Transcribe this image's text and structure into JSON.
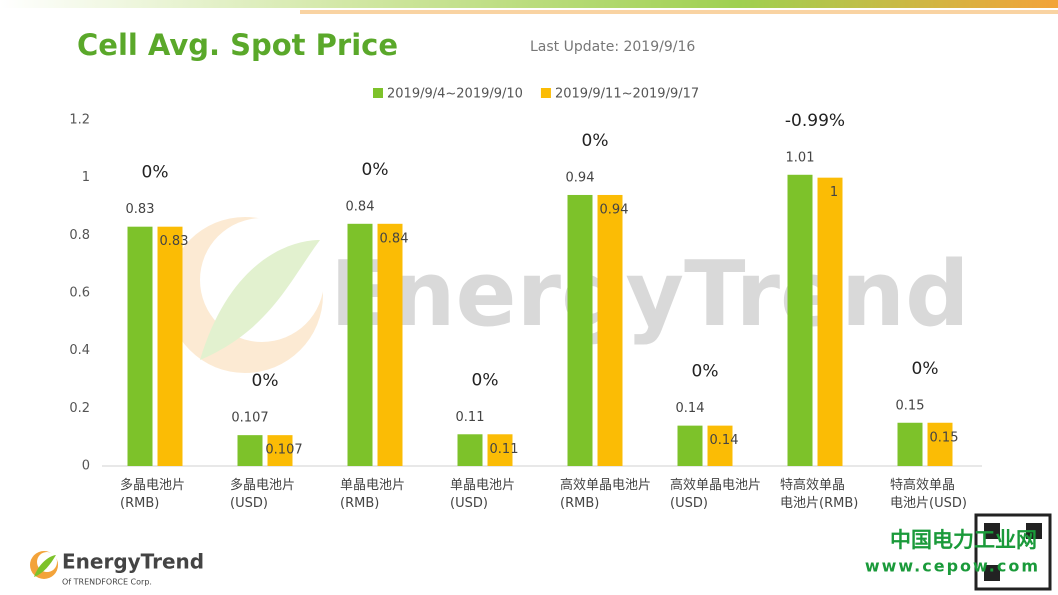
{
  "chart_data": {
    "type": "bar",
    "title": "Cell Avg. Spot Price",
    "subtitle": "Last Update: 2019/9/16",
    "categories": [
      "多晶电池片\n(RMB)",
      "多晶电池片\n(USD)",
      "单晶电池片\n(RMB)",
      "单晶电池片\n(USD)",
      "高效单晶电池片\n(RMB)",
      "高效单晶电池片\n(USD)",
      "特高效单晶\n电池片(RMB)",
      "特高效单晶\n电池片(USD)"
    ],
    "series": [
      {
        "name": "2019/9/4~2019/9/10",
        "color": "#7dc22a",
        "values": [
          0.83,
          0.107,
          0.84,
          0.11,
          0.94,
          0.14,
          1.01,
          0.15
        ]
      },
      {
        "name": "2019/9/11~2019/9/17",
        "color": "#fbbc05",
        "values": [
          0.83,
          0.107,
          0.84,
          0.11,
          0.94,
          0.14,
          1,
          0.15
        ]
      }
    ],
    "annotations": [
      "0%",
      "0%",
      "0%",
      "0%",
      "0%",
      "0%",
      "-0.99%",
      "0%"
    ],
    "ylim": [
      0,
      1.2
    ],
    "yticks": [
      0,
      0.2,
      0.4,
      0.6,
      0.8,
      1,
      1.2
    ],
    "grid": false,
    "legend": "top",
    "watermark": "EnergyTrend",
    "logo": {
      "name": "EnergyTrend",
      "tagline": "Of TRENDFORCE Corp."
    },
    "footer": {
      "site_name": "中国电力工业网",
      "url": "www.cepow.com"
    }
  }
}
